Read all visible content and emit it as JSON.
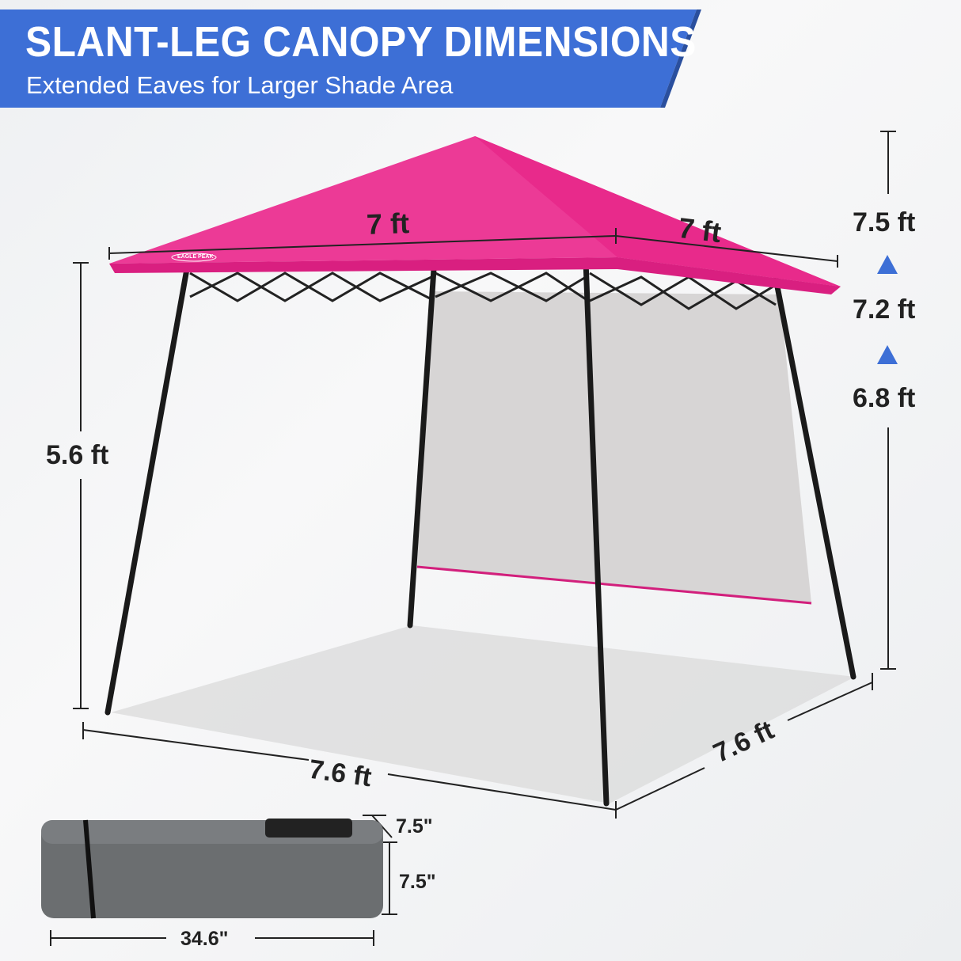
{
  "header": {
    "title": "SLANT-LEG CANOPY DIMENSIONS",
    "subtitle": "Extended Eaves for Larger Shade Area"
  },
  "brand_logo": "EAGLE PEAK",
  "dimensions": {
    "roof_front": "7 ft",
    "roof_side": "7 ft",
    "leg_height": "5.6 ft",
    "base_front": "7.6 ft",
    "base_side": "7.6 ft",
    "heights": [
      "7.5 ft",
      "7.2 ft",
      "6.8 ft"
    ]
  },
  "bag": {
    "depth": "7.5\"",
    "height": "7.5\"",
    "length": "34.6\""
  },
  "colors": {
    "banner": "#3d6fd6",
    "canopy": "#e8308f",
    "arrow": "#3d6fd6",
    "bag": "#6b6e70"
  },
  "icons": {
    "height_arrow": "triangle-up-icon"
  }
}
